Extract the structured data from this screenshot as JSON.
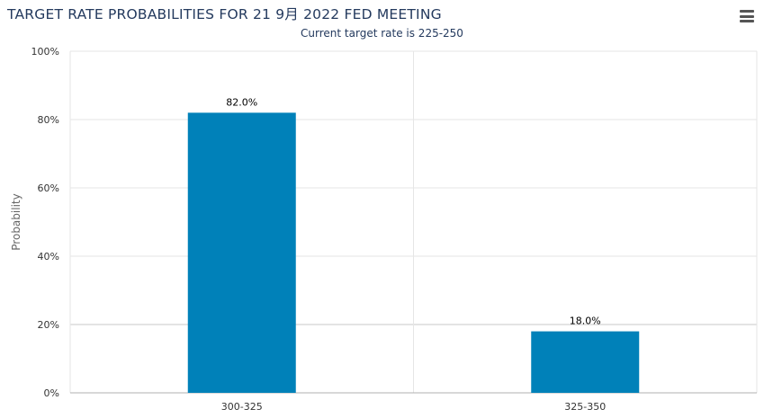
{
  "header": {
    "title": "TARGET RATE PROBABILITIES FOR 21 9月 2022 FED MEETING",
    "subtitle": "Current target rate is 225-250",
    "menu_icon": "hamburger-menu-icon"
  },
  "chart_data": {
    "type": "bar",
    "title": "TARGET RATE PROBABILITIES FOR 21 9月 2022 FED MEETING",
    "subtitle": "Current target rate is 225-250",
    "categories": [
      "300-325",
      "325-350"
    ],
    "values": [
      82.0,
      18.0
    ],
    "data_labels": [
      "82.0%",
      "18.0%"
    ],
    "xlabel": "",
    "ylabel": "Probability",
    "ylim": [
      0,
      100
    ],
    "yticks": [
      0,
      20,
      40,
      60,
      80,
      100
    ],
    "ytick_labels": [
      "0%",
      "20%",
      "40%",
      "60%",
      "80%",
      "100%"
    ],
    "grid": true,
    "bar_color": "#0081b9",
    "grid_color": "#e6e6e6"
  }
}
